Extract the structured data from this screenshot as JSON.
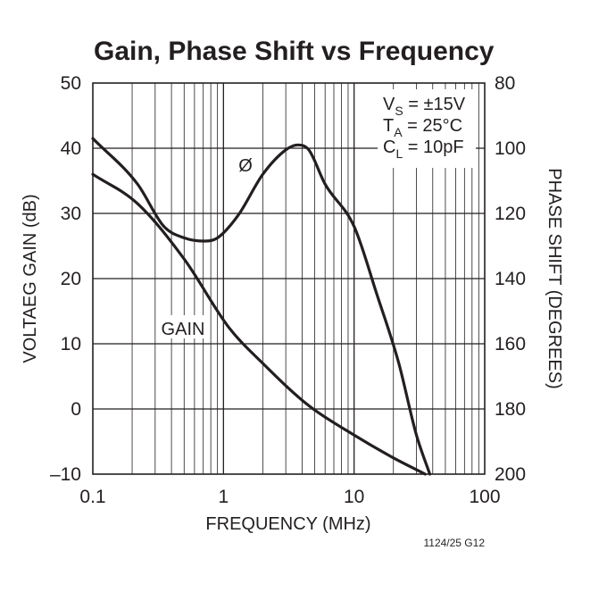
{
  "chart_data": {
    "type": "line",
    "title": "Gain, Phase Shift vs Frequency",
    "xlabel": "FREQUENCY (MHz)",
    "ylabel_left": "VOLTAEG GAIN (dB)",
    "ylabel_right": "PHASE SHIFT (DEGREES)",
    "x_scale": "log",
    "xlim": [
      0.1,
      100
    ],
    "x_ticks": [
      "0.1",
      "1",
      "10",
      "100"
    ],
    "ylim_left": [
      -10,
      50
    ],
    "y_ticks_left": [
      "50",
      "40",
      "30",
      "20",
      "10",
      "0",
      "–10"
    ],
    "ylim_right": [
      200,
      80
    ],
    "y_ticks_right": [
      "80",
      "100",
      "120",
      "140",
      "160",
      "180",
      "200"
    ],
    "grid": true,
    "conditions": [
      {
        "main": "V",
        "sub": "S",
        "rest": " = ±15V"
      },
      {
        "main": "T",
        "sub": "A",
        "rest": " = 25°C"
      },
      {
        "main": "C",
        "sub": "L",
        "rest": " = 10pF"
      }
    ],
    "series": [
      {
        "name": "GAIN",
        "axis": "left",
        "x": [
          0.1,
          0.22,
          0.5,
          1.1,
          2.0,
          4.5,
          10,
          20,
          35
        ],
        "y": [
          36,
          31.5,
          23,
          12.5,
          7,
          0.5,
          -4,
          -7.5,
          -10
        ]
      },
      {
        "name": "Ø",
        "axis": "right",
        "x": [
          0.1,
          0.22,
          0.35,
          0.5,
          0.7,
          0.9,
          1.3,
          2.0,
          3.0,
          3.7,
          4.5,
          6.0,
          10,
          15,
          22,
          30,
          38
        ],
        "y": [
          97,
          111,
          124,
          127.5,
          128.5,
          127.5,
          120.5,
          108,
          100.5,
          99,
          100.5,
          111,
          124,
          145,
          166,
          188,
          200
        ]
      }
    ],
    "figure_code": "1124/25 G12"
  }
}
